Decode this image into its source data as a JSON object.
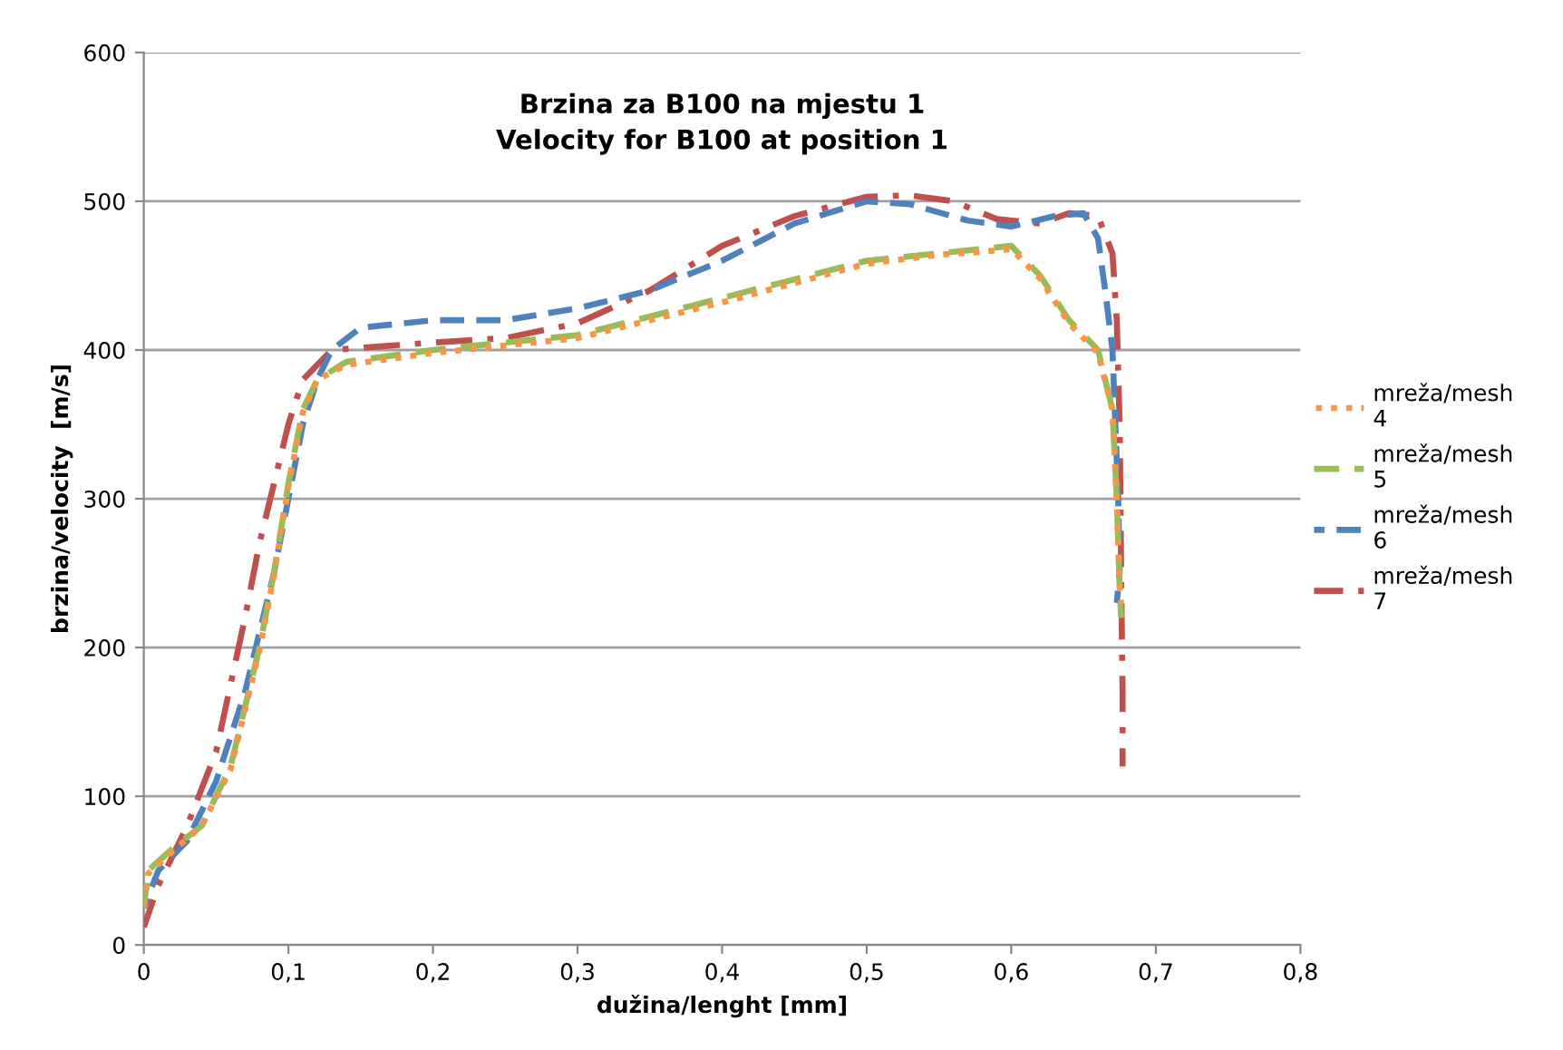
{
  "chart_data": {
    "type": "line",
    "title": "Brzina za B100 na mjestu 1\nVelocity for B100 at position 1",
    "xlabel": "dužina/lenght [mm]",
    "ylabel": "brzina/velocity  [m/s]",
    "xlim": [
      0,
      0.8
    ],
    "xticks": [
      {
        "value": 0,
        "label": "0"
      },
      {
        "value": 0.1,
        "label": "0,1"
      },
      {
        "value": 0.2,
        "label": "0,2"
      },
      {
        "value": 0.3,
        "label": "0,3"
      },
      {
        "value": 0.4,
        "label": "0,4"
      },
      {
        "value": 0.5,
        "label": "0,5"
      },
      {
        "value": 0.6,
        "label": "0,6"
      },
      {
        "value": 0.7,
        "label": "0,7"
      },
      {
        "value": 0.8,
        "label": "0,8"
      }
    ],
    "ylim": [
      0,
      600
    ],
    "yticks": [
      0,
      100,
      200,
      300,
      400,
      500,
      600
    ],
    "grid": "y",
    "legend": "right",
    "marker": "none",
    "series": [
      {
        "name": "mreža/mesh 4",
        "color": "#f79646",
        "line_style": "dotted",
        "x": [
          0,
          0.003,
          0.02,
          0.04,
          0.06,
          0.08,
          0.09,
          0.1,
          0.11,
          0.12,
          0.14,
          0.2,
          0.3,
          0.4,
          0.5,
          0.55,
          0.58,
          0.6,
          0.62,
          0.64,
          0.66,
          0.67,
          0.673,
          0.675,
          0.676
        ],
        "values": [
          25,
          48,
          63,
          80,
          118,
          198,
          248,
          308,
          358,
          380,
          390,
          398,
          408,
          432,
          458,
          464,
          466,
          468,
          448,
          418,
          398,
          360,
          300,
          240,
          230
        ]
      },
      {
        "name": "mreža/mesh 5",
        "color": "#9bbb59",
        "line_style": "dashed",
        "x": [
          0,
          0.003,
          0.02,
          0.04,
          0.06,
          0.08,
          0.09,
          0.1,
          0.11,
          0.12,
          0.14,
          0.2,
          0.3,
          0.4,
          0.5,
          0.55,
          0.58,
          0.6,
          0.62,
          0.64,
          0.66,
          0.67,
          0.673,
          0.675,
          0.676
        ],
        "values": [
          25,
          50,
          65,
          80,
          120,
          200,
          250,
          310,
          360,
          380,
          392,
          400,
          410,
          435,
          460,
          465,
          468,
          470,
          450,
          420,
          400,
          360,
          300,
          240,
          220
        ]
      },
      {
        "name": "mreža/mesh 6",
        "color": "#4f81bd",
        "line_style": "dashed",
        "x": [
          0,
          0.01,
          0.03,
          0.05,
          0.07,
          0.09,
          0.1,
          0.11,
          0.12,
          0.13,
          0.15,
          0.2,
          0.25,
          0.3,
          0.35,
          0.4,
          0.45,
          0.5,
          0.53,
          0.57,
          0.6,
          0.63,
          0.65,
          0.66,
          0.665,
          0.67,
          0.672,
          0.674,
          0.675,
          0.673
        ],
        "values": [
          25,
          50,
          70,
          110,
          170,
          250,
          300,
          350,
          380,
          400,
          415,
          420,
          420,
          428,
          440,
          460,
          485,
          500,
          498,
          487,
          483,
          490,
          492,
          475,
          440,
          400,
          350,
          300,
          250,
          230
        ]
      },
      {
        "name": "mreža/mesh 7",
        "color": "#c0504d",
        "line_style": "dashdot",
        "x": [
          0,
          0.01,
          0.03,
          0.05,
          0.07,
          0.08,
          0.09,
          0.1,
          0.11,
          0.13,
          0.2,
          0.25,
          0.3,
          0.35,
          0.4,
          0.45,
          0.5,
          0.53,
          0.56,
          0.59,
          0.62,
          0.64,
          0.66,
          0.67,
          0.673,
          0.675,
          0.676,
          0.677,
          0.677
        ],
        "values": [
          12,
          40,
          80,
          130,
          220,
          270,
          310,
          350,
          380,
          400,
          405,
          408,
          418,
          440,
          470,
          490,
          503,
          504,
          500,
          488,
          485,
          492,
          490,
          465,
          420,
          350,
          250,
          170,
          120
        ]
      }
    ]
  }
}
